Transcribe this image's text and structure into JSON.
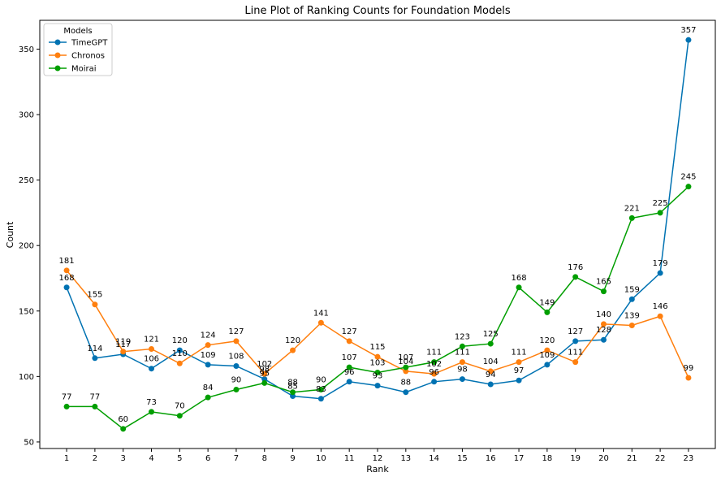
{
  "chart_data": {
    "type": "line",
    "title": "Line Plot of Ranking Counts for Foundation Models",
    "xlabel": "Rank",
    "ylabel": "Count",
    "x": [
      1,
      2,
      3,
      4,
      5,
      6,
      7,
      8,
      9,
      10,
      11,
      12,
      13,
      14,
      15,
      16,
      17,
      18,
      19,
      20,
      21,
      22,
      23
    ],
    "xlim": [
      0.05,
      23.95
    ],
    "ylim": [
      45,
      372
    ],
    "yticks": [
      50,
      100,
      150,
      200,
      250,
      300,
      350
    ],
    "legend": {
      "title": "Models",
      "placement": "top-left"
    },
    "grid": false,
    "series": [
      {
        "name": "TimeGPT",
        "color": "#0072B2",
        "values": [
          168,
          114,
          117,
          106,
          120,
          109,
          108,
          98,
          85,
          83,
          96,
          93,
          88,
          96,
          98,
          94,
          97,
          109,
          127,
          128,
          159,
          179,
          357
        ]
      },
      {
        "name": "Chronos",
        "color": "#FF7F0E",
        "values": [
          181,
          155,
          119,
          121,
          110,
          124,
          127,
          102,
          120,
          141,
          127,
          115,
          104,
          102,
          111,
          104,
          111,
          120,
          111,
          140,
          139,
          146,
          99
        ]
      },
      {
        "name": "Moirai",
        "color": "#009E00",
        "values": [
          77,
          77,
          60,
          73,
          70,
          84,
          90,
          95,
          88,
          90,
          107,
          103,
          107,
          111,
          123,
          125,
          168,
          149,
          176,
          165,
          221,
          225,
          245
        ]
      }
    ]
  }
}
